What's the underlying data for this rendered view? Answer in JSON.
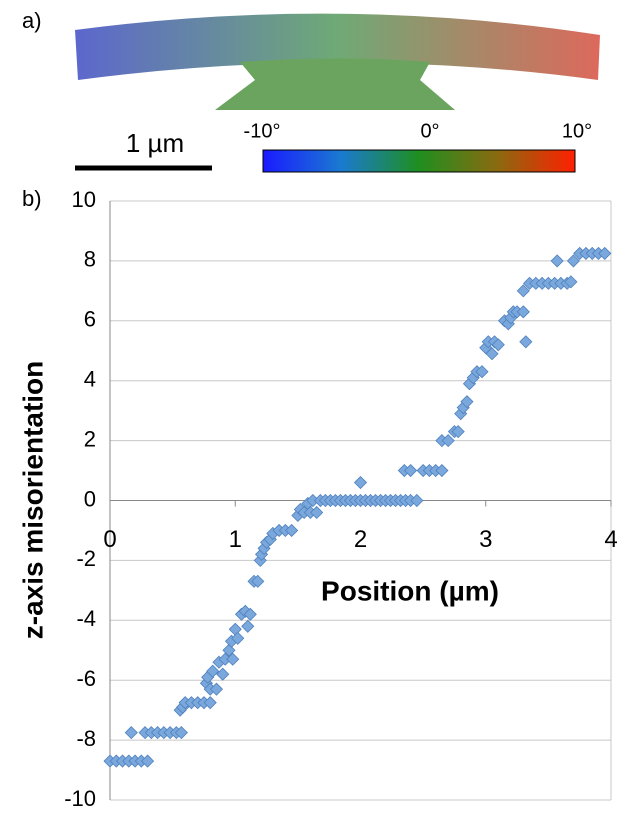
{
  "panel_a": {
    "label": "a)",
    "scale_bar": "1 µm",
    "colorbar_labels": [
      "-10°",
      "0°",
      "10°"
    ]
  },
  "chart_data": {
    "type": "scatter",
    "panel_label": "b)",
    "x_label": "Position (µm)",
    "y_label": "z-axis misorientation",
    "xlim": [
      0,
      4
    ],
    "xticks": [
      0,
      1,
      2,
      3,
      4
    ],
    "ylim": [
      -10,
      10
    ],
    "yticks": [
      -10,
      -8,
      -6,
      -4,
      -2,
      0,
      2,
      4,
      6,
      8,
      10
    ],
    "grid": true,
    "x": [
      0,
      0.05,
      0.1,
      0.15,
      0.2,
      0.25,
      0.3,
      0.17,
      0.28,
      0.33,
      0.38,
      0.43,
      0.48,
      0.53,
      0.57,
      0.56,
      0.58,
      0.6,
      0.65,
      0.7,
      0.75,
      0.8,
      0.77,
      0.78,
      0.8,
      0.82,
      0.85,
      0.87,
      0.9,
      0.92,
      0.95,
      0.97,
      0.98,
      1.0,
      1.02,
      1.05,
      1.08,
      1.1,
      1.12,
      1.15,
      1.18,
      1.2,
      1.21,
      1.23,
      1.25,
      1.28,
      1.3,
      1.35,
      1.4,
      1.45,
      1.5,
      1.52,
      1.55,
      1.58,
      1.6,
      1.62,
      1.65,
      1.68,
      1.72,
      1.76,
      1.8,
      1.84,
      1.88,
      1.92,
      1.96,
      2.0,
      2.04,
      2.08,
      2.12,
      2.16,
      2.2,
      2.24,
      2.28,
      2.32,
      2.36,
      2.4,
      2.45,
      2.0,
      2.35,
      2.4,
      2.5,
      2.55,
      2.6,
      2.65,
      2.65,
      2.7,
      2.75,
      2.78,
      2.8,
      2.82,
      2.85,
      2.87,
      2.9,
      2.93,
      2.97,
      3.0,
      3.02,
      3.05,
      3.07,
      3.1,
      3.15,
      3.18,
      3.2,
      3.22,
      3.25,
      3.3,
      3.32,
      3.3,
      3.35,
      3.4,
      3.45,
      3.5,
      3.55,
      3.6,
      3.65,
      3.57,
      3.68,
      3.7,
      3.75,
      3.8,
      3.85,
      3.9,
      3.95
    ],
    "series": [
      {
        "color": "#7aa7dc",
        "values": [
          -8.7,
          -8.7,
          -8.7,
          -8.7,
          -8.7,
          -8.7,
          -8.7,
          -7.75,
          -7.75,
          -7.75,
          -7.75,
          -7.75,
          -7.75,
          -7.75,
          -7.75,
          -7.0,
          -6.9,
          -6.75,
          -6.75,
          -6.75,
          -6.75,
          -6.75,
          -6.1,
          -5.9,
          -6.3,
          -5.7,
          -6.3,
          -5.4,
          -5.8,
          -5.3,
          -5.0,
          -4.7,
          -5.3,
          -4.3,
          -4.6,
          -3.8,
          -3.7,
          -4.2,
          -3.8,
          -2.7,
          -2.7,
          -2.0,
          -1.8,
          -1.6,
          -1.4,
          -1.3,
          -1.1,
          -1.0,
          -1.0,
          -1.0,
          -0.5,
          -0.3,
          -0.4,
          -0.1,
          -0.4,
          0,
          -0.4,
          0,
          0,
          0,
          0,
          0,
          0,
          0,
          0,
          0,
          0,
          0,
          0,
          0,
          0,
          0,
          0,
          0,
          0,
          0,
          0,
          0.6,
          1.0,
          1.0,
          1.0,
          1.0,
          1.0,
          1.0,
          2.0,
          2.0,
          2.3,
          2.3,
          2.9,
          3.1,
          3.3,
          3.9,
          4.1,
          4.3,
          4.3,
          5.1,
          5.3,
          4.9,
          5.3,
          5.2,
          6.0,
          5.9,
          6.1,
          6.3,
          6.3,
          6.3,
          5.3,
          7.0,
          7.25,
          7.25,
          7.25,
          7.25,
          7.25,
          7.25,
          7.25,
          8.0,
          7.3,
          8.0,
          8.25,
          8.25,
          8.25,
          8.25,
          8.25
        ]
      }
    ]
  }
}
